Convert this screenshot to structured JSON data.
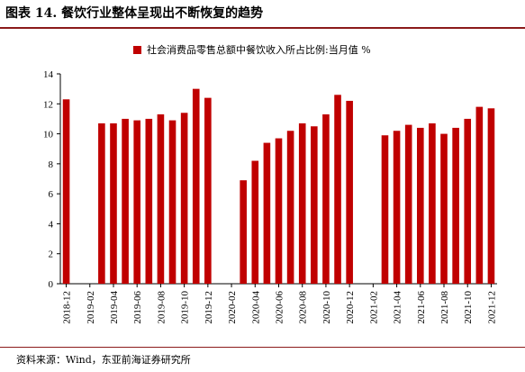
{
  "figure": {
    "title": "图表 14. 餐饮行业整体呈现出不断恢复的趋势",
    "source": "资料来源：Wind，东亚前海证券研究所"
  },
  "colors": {
    "bar": "#c00000",
    "rule": "#8b1a1a",
    "axis": "#000000"
  },
  "chart_data": {
    "type": "bar",
    "title": "",
    "xlabel": "",
    "ylabel": "",
    "ylim": [
      0,
      14
    ],
    "yticks": [
      0,
      2,
      4,
      6,
      8,
      10,
      12,
      14
    ],
    "grid": false,
    "legend_position": "top",
    "categories": [
      "2018-12",
      "2019-01",
      "2019-02",
      "2019-03",
      "2019-04",
      "2019-05",
      "2019-06",
      "2019-07",
      "2019-08",
      "2019-09",
      "2019-10",
      "2019-11",
      "2019-12",
      "2020-01",
      "2020-02",
      "2020-03",
      "2020-04",
      "2020-05",
      "2020-06",
      "2020-07",
      "2020-08",
      "2020-09",
      "2020-10",
      "2020-11",
      "2020-12",
      "2021-01",
      "2021-02",
      "2021-03",
      "2021-04",
      "2021-05",
      "2021-06",
      "2021-07",
      "2021-08",
      "2021-09",
      "2021-10",
      "2021-11",
      "2021-12"
    ],
    "tick_labels": [
      "2018-12",
      "2019-02",
      "2019-04",
      "2019-06",
      "2019-08",
      "2019-10",
      "2019-12",
      "2020-02",
      "2020-04",
      "2020-06",
      "2020-08",
      "2020-10",
      "2020-12",
      "2021-02",
      "2021-04",
      "2021-06",
      "2021-08",
      "2021-10",
      "2021-12"
    ],
    "series": [
      {
        "name": "社会消费品零售总额中餐饮收入所占比例:当月值 %",
        "values": [
          12.3,
          null,
          null,
          10.7,
          10.7,
          11.0,
          10.9,
          11.0,
          11.3,
          10.9,
          11.4,
          13.0,
          12.4,
          null,
          null,
          6.9,
          8.2,
          9.4,
          9.7,
          10.2,
          10.7,
          10.5,
          11.3,
          12.6,
          12.2,
          null,
          null,
          9.9,
          10.2,
          10.6,
          10.4,
          10.7,
          10.0,
          10.4,
          11.0,
          11.8,
          11.7
        ]
      }
    ]
  }
}
